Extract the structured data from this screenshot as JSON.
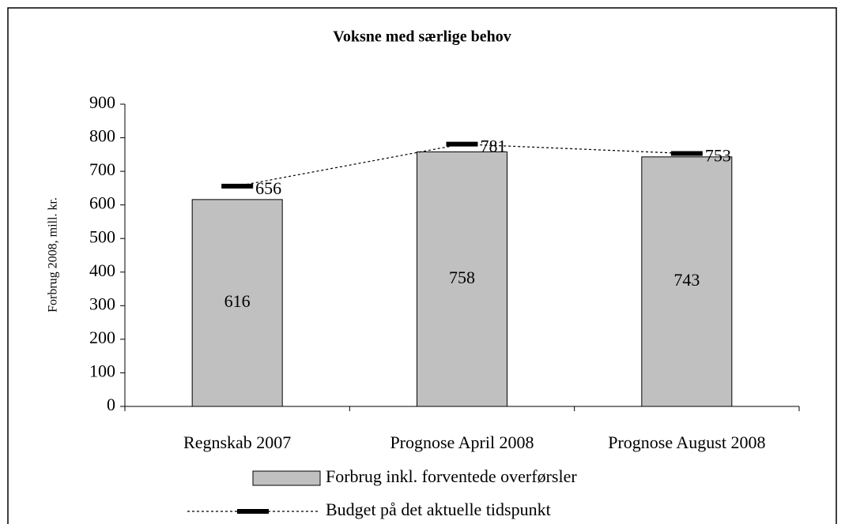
{
  "chart_data": {
    "type": "bar_line",
    "title": "Voksne med særlige behov",
    "y_label": "Forbrug 2008, mill. kr.",
    "categories": [
      "Regnskab 2007",
      "Prognose April 2008",
      "Prognose August 2008"
    ],
    "series": [
      {
        "name": "Forbrug inkl. forventede overførsler",
        "color": "#c0c0c0",
        "type": "bar",
        "values": [
          616,
          758,
          743
        ]
      },
      {
        "name": "Budget på det aktuelle tidspunkt",
        "color": "#000000",
        "type": "line",
        "values": [
          656,
          781,
          753
        ]
      }
    ],
    "ylim": [
      0,
      900
    ],
    "yticks": [
      0,
      100,
      200,
      300,
      400,
      500,
      600,
      700,
      800,
      900
    ]
  }
}
